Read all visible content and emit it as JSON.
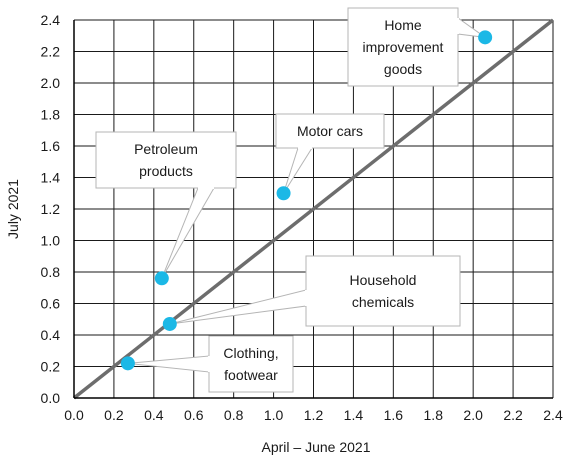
{
  "chart_data": {
    "type": "scatter",
    "title": "",
    "xlabel": "April – June 2021",
    "ylabel": "July 2021",
    "xlim": [
      0,
      2.4
    ],
    "ylim": [
      0,
      2.4
    ],
    "grid": true,
    "x_ticks": [
      "0.0",
      "0.2",
      "0.4",
      "0.6",
      "0.8",
      "1.0",
      "1.2",
      "1.4",
      "1.6",
      "1.8",
      "2.0",
      "2.2",
      "2.4"
    ],
    "y_ticks": [
      "0.0",
      "0.2",
      "0.4",
      "0.6",
      "0.8",
      "1.0",
      "1.2",
      "1.4",
      "1.6",
      "1.8",
      "2.0",
      "2.2",
      "2.4"
    ],
    "reference_line": {
      "from": [
        0,
        0
      ],
      "to": [
        2.4,
        2.4
      ],
      "color": "#6d6d6d"
    },
    "point_color": "#1bb8e6",
    "points": [
      {
        "label": [
          "Home",
          "improvement",
          "goods"
        ],
        "x": 2.06,
        "y": 2.29
      },
      {
        "label": [
          "Motor cars"
        ],
        "x": 1.05,
        "y": 1.3
      },
      {
        "label": [
          "Petroleum",
          "products"
        ],
        "x": 0.44,
        "y": 0.76
      },
      {
        "label": [
          "Household",
          "chemicals"
        ],
        "x": 0.48,
        "y": 0.47
      },
      {
        "label": [
          "Clothing,",
          "footwear"
        ],
        "x": 0.27,
        "y": 0.22
      }
    ]
  }
}
